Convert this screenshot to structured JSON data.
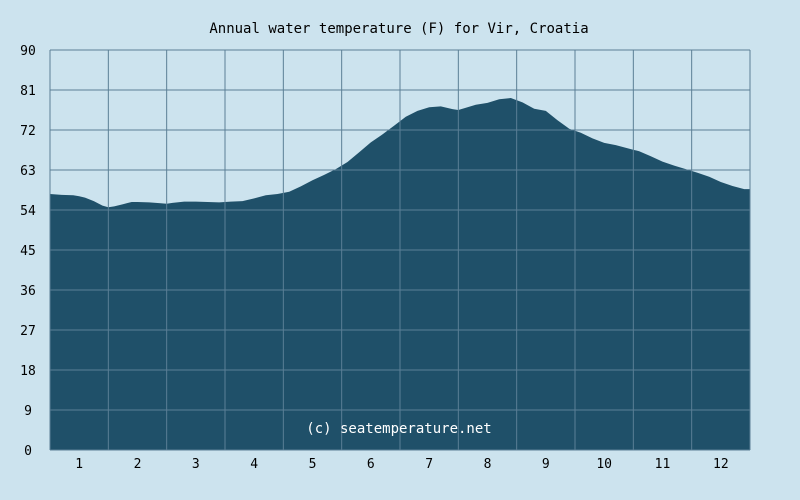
{
  "chart_data": {
    "type": "area",
    "title": "Annual water temperature (F) for Vir, Croatia",
    "watermark": "(c) seatemperature.net",
    "xlabel": "",
    "ylabel": "",
    "x_tick_labels": [
      "1",
      "2",
      "3",
      "4",
      "5",
      "6",
      "7",
      "8",
      "9",
      "10",
      "11",
      "12"
    ],
    "y_tick_labels": [
      "0",
      "9",
      "18",
      "27",
      "36",
      "45",
      "54",
      "63",
      "72",
      "81",
      "90"
    ],
    "ylim": [
      0,
      90
    ],
    "xlim": [
      0.5,
      12.5
    ],
    "grid": true,
    "colors": {
      "background": "#cce3ee",
      "fill": "#1f5069",
      "grid": "#5b7f96"
    },
    "series": [
      {
        "x": [
          0.5,
          0.7,
          0.9,
          1.0,
          1.1,
          1.25,
          1.4,
          1.5,
          1.6,
          1.75,
          1.9,
          2.0,
          2.2,
          2.4,
          2.5,
          2.6,
          2.8,
          3.0,
          3.2,
          3.4,
          3.6,
          3.8,
          4.0,
          4.2,
          4.4,
          4.6,
          4.8,
          5.0,
          5.2,
          5.4,
          5.6,
          5.8,
          6.0,
          6.2,
          6.4,
          6.6,
          6.8,
          7.0,
          7.2,
          7.4,
          7.5,
          7.6,
          7.8,
          8.0,
          8.2,
          8.4,
          8.6,
          8.8,
          9.0,
          9.2,
          9.4,
          9.6,
          9.8,
          10.0,
          10.2,
          10.4,
          10.6,
          10.8,
          11.0,
          11.2,
          11.4,
          11.6,
          11.8,
          12.0,
          12.2,
          12.4,
          12.5
        ],
        "values": [
          57.6,
          57.4,
          57.3,
          57.1,
          56.8,
          56.0,
          55.0,
          54.6,
          54.8,
          55.3,
          55.8,
          55.8,
          55.7,
          55.5,
          55.4,
          55.6,
          55.9,
          55.9,
          55.8,
          55.7,
          55.9,
          56.0,
          56.6,
          57.3,
          57.6,
          58.1,
          59.3,
          60.7,
          61.9,
          63.2,
          64.8,
          67.0,
          69.2,
          71.0,
          73.0,
          75.0,
          76.3,
          77.1,
          77.3,
          76.7,
          76.5,
          76.9,
          77.7,
          78.1,
          78.9,
          79.2,
          78.2,
          76.8,
          76.3,
          74.2,
          72.3,
          71.4,
          70.1,
          69.1,
          68.6,
          67.9,
          67.2,
          66.1,
          64.9,
          64.0,
          63.2,
          62.4,
          61.5,
          60.3,
          59.4,
          58.7,
          58.7
        ]
      }
    ]
  }
}
